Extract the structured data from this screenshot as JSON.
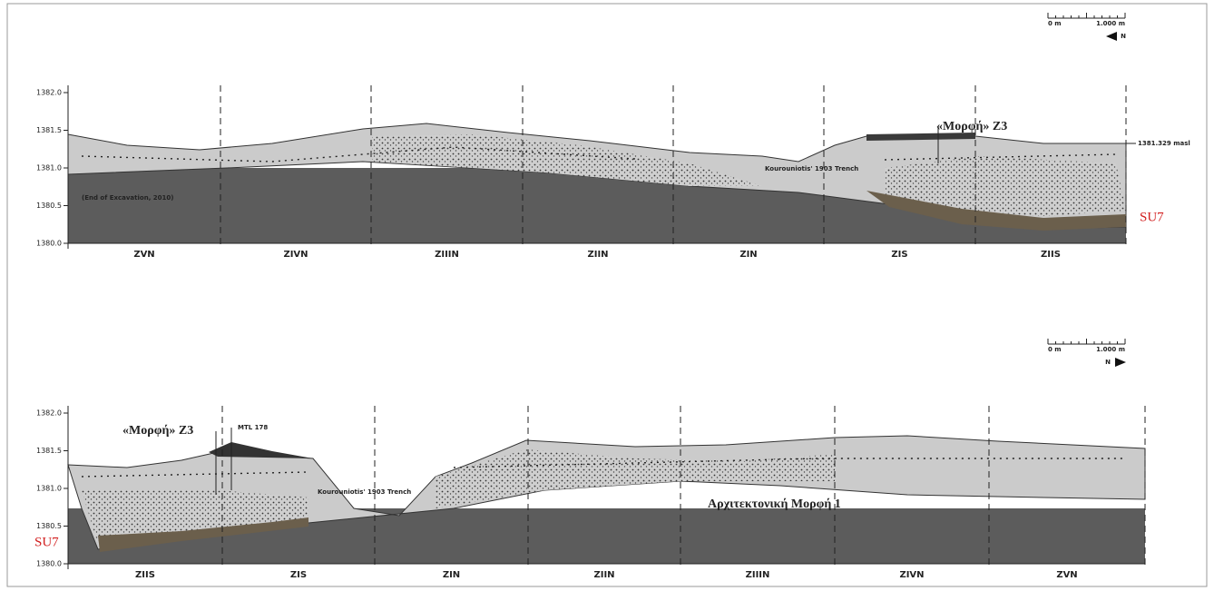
{
  "panels": [
    {
      "scale": {
        "start": "0 m",
        "end": "1.000 m",
        "north": "N"
      },
      "yticks": [
        "1382.0",
        "1381.5",
        "1381.0",
        "1380.5",
        "1380.0"
      ],
      "sections": [
        "ZVN",
        "ZIVN",
        "ZIIIN",
        "ZIIN",
        "ZIN",
        "ZIS",
        "ZIIS"
      ],
      "annotations": {
        "datum": "1381.329 masl",
        "morfi": "«Μορφή» Z3",
        "excavation": "(End of Excavation, 2010)",
        "trench": "Kourouniotis' 1903 Trench",
        "su": "SU7"
      }
    },
    {
      "scale": {
        "start": "0 m",
        "end": "1.000 m",
        "north": "N"
      },
      "yticks": [
        "1382.0",
        "1381.5",
        "1381.0",
        "1380.5",
        "1380.0"
      ],
      "sections": [
        "ZIIS",
        "ZIS",
        "ZIN",
        "ZIIN",
        "ZIIIN",
        "ZIVN",
        "ZVN"
      ],
      "annotations": {
        "morfi": "«Μορφή» Z3",
        "mtl": "MTL 178",
        "trench": "Kourouniotis' 1903 Trench",
        "architecture": "Αρχιτεκτονική Μορφή 1",
        "su": "SU7"
      }
    }
  ]
}
